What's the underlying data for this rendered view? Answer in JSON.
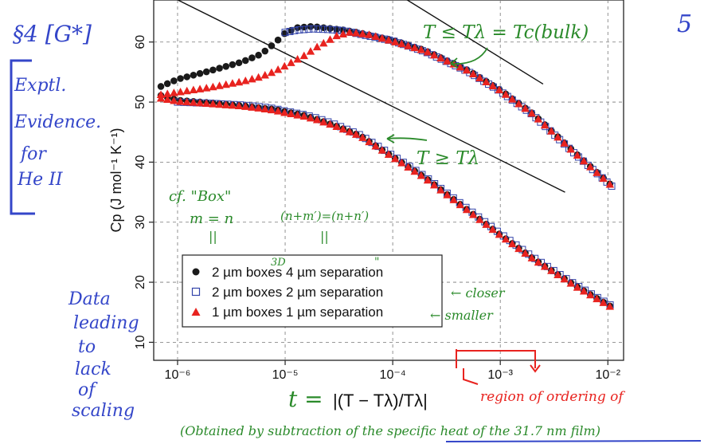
{
  "notes": {
    "section": "§4 [G*]",
    "side_box": [
      "Exptl.",
      "Evidence.",
      "for",
      "He II"
    ],
    "page_number": "5",
    "lower_left": [
      "Data",
      "leading",
      "to",
      "lack",
      "of",
      "scaling"
    ],
    "upper_curve": "T ≤ Tλ = Tc(bulk)",
    "lower_curve": "T ≥ Tλ",
    "cf_box": "cf. \"Box\"",
    "m_eq_n": "m = n",
    "n_eq": "(n+m′)=(n+n′)",
    "parallel_left": "||",
    "parallel_right": "||",
    "three_d": "3D",
    "quote_marks": "\"",
    "closer": "← closer",
    "smaller": "← smaller",
    "region": "region of ordering of",
    "t_def": "t =",
    "footnote": "(Obtained by subtraction of the specific heat of the 31.7 nm film)"
  },
  "chart_data": {
    "type": "scatter",
    "xscale": "log",
    "xlim": [
      6e-07,
      0.014
    ],
    "ylim": [
      7,
      67
    ],
    "xlabel": "|(T − Tλ)/Tλ|",
    "ylabel": "Cp (J mol⁻¹ K⁻¹)",
    "xticks": [
      {
        "value": 1e-06,
        "label": "10⁻⁶"
      },
      {
        "value": 1e-05,
        "label": "10⁻⁵"
      },
      {
        "value": 0.0001,
        "label": "10⁻⁴"
      },
      {
        "value": 0.001,
        "label": "10⁻³"
      },
      {
        "value": 0.01,
        "label": "10⁻²"
      }
    ],
    "yticks": [
      10,
      20,
      30,
      40,
      50,
      60
    ],
    "grid": true,
    "legend_position": "lower-left",
    "reference_lines": [
      {
        "x": [
          6e-07,
          0.004
        ],
        "y": [
          69,
          35
        ]
      },
      {
        "x": [
          9e-05,
          0.0025
        ],
        "y": [
          69,
          53
        ]
      }
    ],
    "series": [
      {
        "name": "2 µm boxes 4 µm separation",
        "marker": "circle-filled",
        "color": "#1a1a1a",
        "upper": {
          "x": [
            7e-07,
            1e-06,
            2e-06,
            4e-06,
            6e-06,
            8e-06,
            1e-05,
            1.3e-05,
            1.8e-05,
            2.5e-05,
            3.5e-05,
            5e-05,
            0.0001,
            0.0002,
            0.0005,
            0.001,
            0.002,
            0.005,
            0.012
          ],
          "y": [
            52.6,
            53.8,
            55.2,
            56.7,
            58.0,
            59.8,
            61.5,
            62.4,
            62.6,
            62.3,
            62.0,
            61.5,
            60.3,
            58.6,
            55.3,
            52.0,
            48.1,
            41.5,
            35.4
          ]
        },
        "lower": {
          "x": [
            7e-07,
            1e-06,
            2e-06,
            4e-06,
            6e-06,
            8e-06,
            1e-05,
            1.5e-05,
            2e-05,
            3e-05,
            5e-05,
            0.0001,
            0.0002,
            0.0005,
            0.001,
            0.002,
            0.005,
            0.012
          ],
          "y": [
            51.1,
            50.3,
            49.9,
            49.4,
            49.0,
            48.8,
            48.4,
            47.8,
            47.1,
            46.0,
            44.4,
            40.9,
            37.4,
            32.0,
            27.9,
            24.0,
            19.4,
            15.4
          ]
        }
      },
      {
        "name": "2 µm boxes 2 µm separation",
        "marker": "square-open",
        "color": "#3344aa",
        "upper": {
          "x": [
            1e-05,
            1.3e-05,
            1.8e-05,
            2.5e-05,
            3.5e-05,
            5e-05,
            0.0001,
            0.0002,
            0.0005,
            0.001,
            0.002,
            0.005,
            0.012
          ],
          "y": [
            61.6,
            62.0,
            62.2,
            62.1,
            61.9,
            61.3,
            60.2,
            58.4,
            55.1,
            51.8,
            47.9,
            41.3,
            35.3
          ]
        },
        "lower": {
          "x": [
            1e-06,
            2e-06,
            4e-06,
            6e-06,
            8e-06,
            1e-05,
            1.5e-05,
            2e-05,
            3e-05,
            5e-05,
            0.0001,
            0.0002,
            0.0005,
            0.001,
            0.002,
            0.005,
            0.012
          ],
          "y": [
            50.0,
            49.8,
            49.5,
            49.2,
            48.9,
            48.5,
            47.9,
            47.3,
            46.2,
            44.5,
            41.1,
            37.6,
            32.2,
            28.1,
            24.2,
            19.6,
            15.6
          ]
        }
      },
      {
        "name": "1 µm boxes 1 µm separation",
        "marker": "triangle-filled",
        "color": "#e8231f",
        "upper": {
          "x": [
            7e-07,
            1e-06,
            2e-06,
            4e-06,
            6e-06,
            8e-06,
            1e-05,
            1.5e-05,
            2e-05,
            3e-05,
            4e-05,
            6e-05,
            0.0001,
            0.0002,
            0.0005,
            0.001,
            0.002,
            0.005,
            0.012
          ],
          "y": [
            51.2,
            51.6,
            52.4,
            53.4,
            54.2,
            55.1,
            56.0,
            57.7,
            59.2,
            61.0,
            61.6,
            61.2,
            60.1,
            58.5,
            55.2,
            51.9,
            48.0,
            41.4,
            35.3
          ]
        },
        "lower": {
          "x": [
            7e-07,
            1e-06,
            2e-06,
            4e-06,
            6e-06,
            8e-06,
            1e-05,
            1.5e-05,
            2e-05,
            3e-05,
            5e-05,
            0.0001,
            0.0002,
            0.0005,
            0.001,
            0.002,
            0.005,
            0.012
          ],
          "y": [
            50.6,
            50.1,
            49.7,
            49.3,
            48.9,
            48.6,
            48.2,
            47.6,
            47.0,
            45.9,
            44.3,
            40.8,
            37.3,
            31.9,
            27.8,
            23.9,
            19.3,
            15.3
          ]
        }
      }
    ]
  }
}
